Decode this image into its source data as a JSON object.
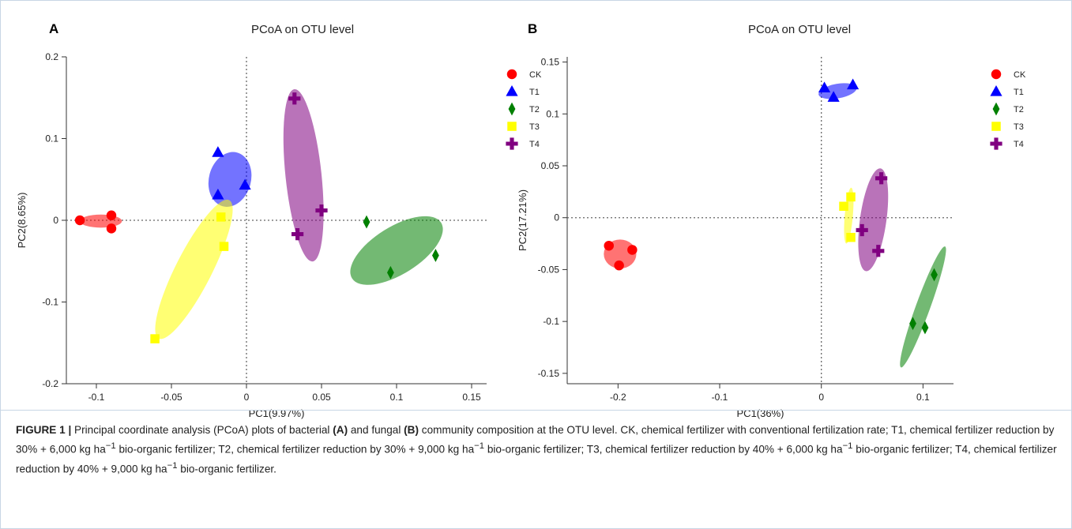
{
  "chart_data": [
    {
      "type": "scatter",
      "panel_label": "A",
      "title": "PCoA on OTU level",
      "xlabel": "PC1(9.97%)",
      "ylabel": "PC2(8.65%)",
      "xlim": [
        -0.12,
        0.16
      ],
      "ylim": [
        -0.2,
        0.2
      ],
      "xticks": [
        -0.1,
        -0.05,
        0,
        0.05,
        0.1,
        0.15
      ],
      "xtick_labels": [
        "-0.1",
        "-0.05",
        "0",
        "0.05",
        "0.1",
        "0.15"
      ],
      "yticks": [
        -0.2,
        -0.1,
        0,
        0.1,
        0.2
      ],
      "ytick_labels": [
        "-0.2",
        "-0.1",
        "0",
        "0.1",
        "0.2"
      ],
      "reference_lines": {
        "x": 0,
        "y": 0,
        "style": "dotted"
      },
      "legend_position": "outside-right-top",
      "series": [
        {
          "name": "CK",
          "marker": "circle",
          "color": "#ff0000",
          "points": [
            [
              -0.111,
              0.0
            ],
            [
              -0.09,
              0.006
            ],
            [
              -0.09,
              -0.01
            ]
          ],
          "ellipse": {
            "cx": -0.097,
            "cy": -0.001,
            "rx": 0.014,
            "ry": 0.008,
            "angle_deg": 0
          }
        },
        {
          "name": "T1",
          "marker": "triangle",
          "color": "#0000ff",
          "points": [
            [
              -0.019,
              0.083
            ],
            [
              -0.019,
              0.031
            ],
            [
              -0.001,
              0.043
            ]
          ],
          "ellipse": {
            "cx": -0.011,
            "cy": 0.05,
            "rx": 0.014,
            "ry": 0.034,
            "angle_deg": 15
          }
        },
        {
          "name": "T2",
          "marker": "diamond",
          "color": "#008000",
          "points": [
            [
              0.08,
              -0.002
            ],
            [
              0.096,
              -0.064
            ],
            [
              0.126,
              -0.043
            ]
          ],
          "ellipse": {
            "cx": 0.1,
            "cy": -0.037,
            "rx": 0.035,
            "ry": 0.029,
            "angle_deg": -32
          }
        },
        {
          "name": "T3",
          "marker": "square",
          "color": "#ffff00",
          "points": [
            [
              -0.017,
              0.004
            ],
            [
              -0.015,
              -0.032
            ],
            [
              -0.061,
              -0.145
            ]
          ],
          "ellipse": {
            "cx": -0.035,
            "cy": -0.06,
            "rx": 0.012,
            "ry": 0.095,
            "angle_deg": 27
          }
        },
        {
          "name": "T4",
          "marker": "plus",
          "color": "#800080",
          "points": [
            [
              0.032,
              0.149
            ],
            [
              0.05,
              0.012
            ],
            [
              0.034,
              -0.017
            ]
          ],
          "ellipse": {
            "cx": 0.038,
            "cy": 0.055,
            "rx": 0.012,
            "ry": 0.106,
            "angle_deg": -6
          }
        }
      ]
    },
    {
      "type": "scatter",
      "panel_label": "B",
      "title": "PCoA on OTU level",
      "xlabel": "PC1(36%)",
      "ylabel": "PC2(17.21%)",
      "xlim": [
        -0.25,
        0.13
      ],
      "ylim": [
        -0.16,
        0.155
      ],
      "xticks": [
        -0.2,
        -0.1,
        0,
        0.1
      ],
      "xtick_labels": [
        "-0.2",
        "-0.1",
        "0",
        "0.1"
      ],
      "yticks": [
        -0.15,
        -0.1,
        -0.05,
        0,
        0.05,
        0.1,
        0.15
      ],
      "ytick_labels": [
        "-0.15",
        "-0.1",
        "-0.05",
        "0",
        "0.05",
        "0.1",
        "0.15"
      ],
      "reference_lines": {
        "x": 0,
        "y": 0,
        "style": "dotted"
      },
      "legend_position": "outside-right-top",
      "series": [
        {
          "name": "CK",
          "marker": "circle",
          "color": "#ff0000",
          "points": [
            [
              -0.209,
              -0.027
            ],
            [
              -0.186,
              -0.031
            ],
            [
              -0.199,
              -0.046
            ]
          ],
          "ellipse": {
            "cx": -0.198,
            "cy": -0.035,
            "rx": 0.016,
            "ry": 0.014,
            "angle_deg": 0
          }
        },
        {
          "name": "T1",
          "marker": "triangle",
          "color": "#0000ff",
          "points": [
            [
              0.003,
              0.125
            ],
            [
              0.012,
              0.116
            ],
            [
              0.031,
              0.128
            ]
          ],
          "ellipse": {
            "cx": 0.016,
            "cy": 0.122,
            "rx": 0.019,
            "ry": 0.007,
            "angle_deg": -10
          }
        },
        {
          "name": "T2",
          "marker": "diamond",
          "color": "#008000",
          "points": [
            [
              0.09,
              -0.102
            ],
            [
              0.102,
              -0.106
            ],
            [
              0.111,
              -0.055
            ]
          ],
          "ellipse": {
            "cx": 0.1,
            "cy": -0.086,
            "rx": 0.007,
            "ry": 0.062,
            "angle_deg": 20
          }
        },
        {
          "name": "T3",
          "marker": "square",
          "color": "#ffff00",
          "points": [
            [
              0.022,
              0.011
            ],
            [
              0.029,
              0.02
            ],
            [
              0.029,
              -0.019
            ]
          ],
          "ellipse": {
            "cx": 0.027,
            "cy": 0.002,
            "rx": 0.004,
            "ry": 0.027,
            "angle_deg": 5
          }
        },
        {
          "name": "T4",
          "marker": "plus",
          "color": "#800080",
          "points": [
            [
              0.059,
              0.038
            ],
            [
              0.04,
              -0.012
            ],
            [
              0.056,
              -0.032
            ]
          ],
          "ellipse": {
            "cx": 0.051,
            "cy": -0.002,
            "rx": 0.013,
            "ry": 0.05,
            "angle_deg": 8
          }
        }
      ]
    }
  ],
  "caption": {
    "lead": "FIGURE 1 |",
    "part1": " Principal coordinate analysis (PCoA) plots of bacterial ",
    "ref_a": "(A)",
    "part2": " and fungal ",
    "ref_b": "(B)",
    "part3": " community composition at the OTU level. CK, chemical fertilizer with conventional fertilization rate; T1, chemical fertilizer reduction by 30% + 6,000 kg ha",
    "sup1": "−1",
    "part4": " bio-organic fertilizer; T2, chemical fertilizer reduction by 30% + 9,000 kg ha",
    "sup2": "−1",
    "part5": " bio-organic fertilizer; T3, chemical fertilizer reduction by 40% + 6,000 kg ha",
    "sup3": "−1",
    "part6": " bio-organic fertilizer; T4, chemical fertilizer reduction by 40% + 9,000 kg ha",
    "sup4": "−1",
    "part7": " bio-organic fertilizer."
  }
}
